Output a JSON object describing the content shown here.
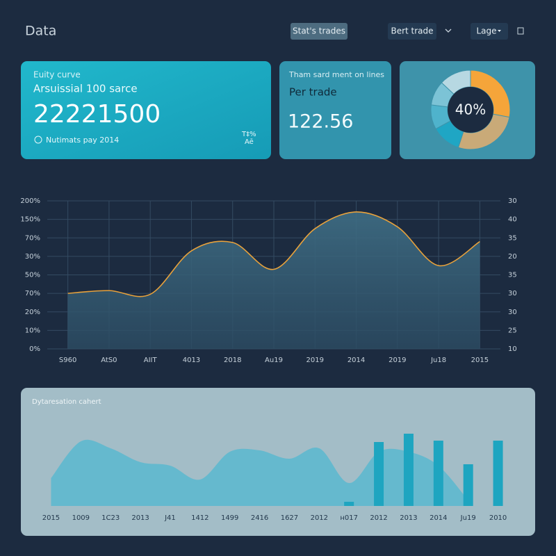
{
  "header": {
    "title": "Data",
    "buttons": [
      "Stat's trades",
      "Bert trade",
      "Lage"
    ]
  },
  "cards": [
    {
      "label": "Euity curve",
      "subtitle": "Arsuissial 100 sarce",
      "value": "22221500",
      "note": "Nutimats pay 2014",
      "corner": [
        "T‡%",
        "Aē"
      ]
    },
    {
      "label": "Tham sard ment on lines",
      "subtitle": "Per trade",
      "value": "122.56"
    }
  ],
  "chart_data": [
    {
      "type": "pie",
      "center_label": "40%",
      "values": [
        28,
        27,
        12,
        10,
        10,
        13
      ],
      "colors": [
        "#f5a53a",
        "#c9aa78",
        "#1fa6c4",
        "#4fb3cc",
        "#7cc3d6",
        "#b7d8e2"
      ]
    },
    {
      "type": "line",
      "categories": [
        "S960",
        "AtS0",
        "AIIT",
        "4013",
        "2018",
        "Au19",
        "2019",
        "2014",
        "2019",
        "Ju18",
        "2015"
      ],
      "values": [
        3.0,
        3.15,
        2.95,
        5.3,
        5.75,
        4.3,
        6.5,
        7.4,
        6.6,
        4.5,
        5.8
      ],
      "color": "#e9a23b",
      "ylim": [
        0,
        8
      ],
      "yticks": [
        {
          "value": 0,
          "label": "0%"
        },
        {
          "value": 1,
          "label": "10%"
        },
        {
          "value": 2,
          "label": "20%"
        },
        {
          "value": 3,
          "label": "70%"
        },
        {
          "value": 4,
          "label": "50%"
        },
        {
          "value": 5,
          "label": "30%"
        },
        {
          "value": 6,
          "label": "70%"
        },
        {
          "value": 7,
          "label": "150%"
        },
        {
          "value": 8,
          "label": "200%"
        }
      ],
      "y2lim": [
        0,
        8
      ],
      "y2ticks": [
        {
          "value": 0,
          "label": "10"
        },
        {
          "value": 1,
          "label": "25"
        },
        {
          "value": 2,
          "label": "30"
        },
        {
          "value": 3,
          "label": "30"
        },
        {
          "value": 4,
          "label": "35"
        },
        {
          "value": 5,
          "label": "20"
        },
        {
          "value": 6,
          "label": "35"
        },
        {
          "value": 7,
          "label": "40"
        },
        {
          "value": 8,
          "label": "30"
        }
      ],
      "grid": true
    },
    {
      "type": "bar",
      "title": "Dytaresation cahert",
      "categories": [
        "2015",
        "1009",
        "1C23",
        "2013",
        "J41",
        "1412",
        "1499",
        "2416",
        "1627",
        "2012",
        "н017",
        "2012",
        "2013",
        "2014",
        "Ju19",
        "2010"
      ],
      "ylim": [
        0,
        130
      ],
      "series": [
        {
          "type": "area",
          "color": "#5ab8cf",
          "values": [
            40,
            93,
            83,
            63,
            58,
            38,
            78,
            80,
            68,
            83,
            33,
            78,
            78,
            58,
            8,
            null
          ]
        },
        {
          "type": "bar",
          "color": "#1ea5c0",
          "values": [
            null,
            null,
            null,
            null,
            null,
            null,
            null,
            null,
            null,
            null,
            6,
            92,
            104,
            94,
            60,
            94
          ]
        }
      ]
    }
  ]
}
